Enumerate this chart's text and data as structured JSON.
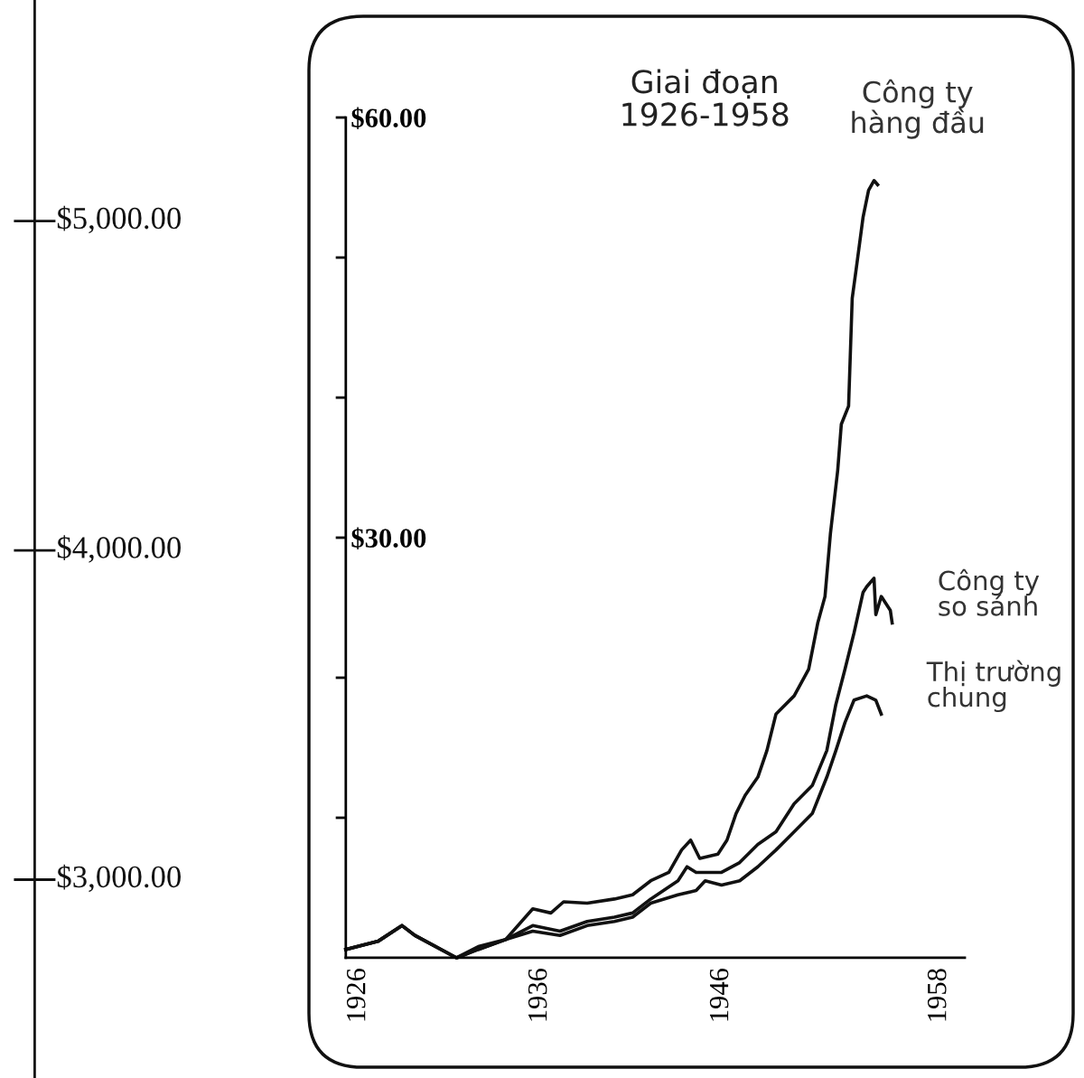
{
  "chart_data": [
    {
      "type": "other",
      "annotations": [
        "$5,000.00",
        "$4,000.00",
        "$3,000.00"
      ]
    },
    {
      "type": "line",
      "title": "Giai đoạn\n1926-1958",
      "xlim": [
        1925.3,
        1959.4
      ],
      "ylim": [
        0,
        60
      ],
      "xticks": [
        1926,
        1936,
        1946,
        1958
      ],
      "yticks": [
        {
          "value": 10,
          "label": null
        },
        {
          "value": 20,
          "label": null
        },
        {
          "value": 30,
          "label": "$30.00"
        },
        {
          "value": 40,
          "label": null
        },
        {
          "value": 50,
          "label": null
        },
        {
          "value": 60,
          "label": "$60.00"
        }
      ],
      "grid": false,
      "legend": false,
      "series": [
        {
          "name": "Công ty\nhàng đầu",
          "color": "#111111",
          "x": [
            1925.3,
            1927.1,
            1928.4,
            1929.1,
            1931.4,
            1932.6,
            1934.1,
            1935.6,
            1936.6,
            1937.3,
            1938.6,
            1940.1,
            1941.1,
            1942.1,
            1943.1,
            1943.8,
            1944.3,
            1944.8,
            1945.8,
            1946.3,
            1946.8,
            1947.3,
            1948.0,
            1948.5,
            1949.0,
            1950.0,
            1950.8,
            1951.3,
            1951.7,
            1952.0,
            1952.4,
            1952.6,
            1953.0,
            1953.2,
            1953.4,
            1953.8,
            1954.1,
            1954.4,
            1954.6
          ],
          "values": [
            0.6,
            1.2,
            2.3,
            1.6,
            0,
            0.8,
            1.3,
            3.5,
            3.2,
            4.0,
            3.9,
            4.2,
            4.5,
            5.5,
            6.1,
            7.7,
            8.4,
            7.1,
            7.4,
            8.4,
            10.3,
            11.6,
            12.9,
            14.8,
            17.4,
            18.7,
            20.6,
            23.9,
            25.8,
            30.3,
            34.8,
            38.1,
            39.4,
            47.1,
            49.0,
            52.9,
            54.8,
            55.5,
            55.2
          ]
        },
        {
          "name": "Công ty\nso sánh",
          "color": "#111111",
          "x": [
            1925.3,
            1927.1,
            1928.4,
            1929.1,
            1931.4,
            1932.6,
            1934.1,
            1935.6,
            1937.1,
            1938.6,
            1940.1,
            1941.1,
            1942.1,
            1943.6,
            1944.1,
            1944.6,
            1946.0,
            1947.0,
            1948.0,
            1949.0,
            1950.0,
            1951.0,
            1951.8,
            1952.3,
            1952.8,
            1953.3,
            1953.8,
            1954.0,
            1954.4,
            1954.5,
            1954.8,
            1955.3,
            1955.4
          ],
          "values": [
            0.6,
            1.2,
            2.3,
            1.6,
            0,
            0.6,
            1.3,
            2.3,
            1.9,
            2.6,
            2.9,
            3.2,
            4.2,
            5.5,
            6.5,
            6.1,
            6.1,
            6.8,
            8.1,
            9.0,
            11.0,
            12.3,
            14.8,
            18.1,
            20.6,
            23.2,
            26.1,
            26.5,
            27.1,
            24.5,
            25.8,
            24.8,
            23.9
          ]
        },
        {
          "name": "Thị trường\nchung",
          "color": "#111111",
          "x": [
            1925.3,
            1927.1,
            1928.4,
            1929.1,
            1931.4,
            1932.6,
            1934.1,
            1935.6,
            1937.1,
            1938.6,
            1940.1,
            1941.1,
            1942.1,
            1943.6,
            1944.6,
            1945.1,
            1946.0,
            1947.0,
            1948.0,
            1949.0,
            1950.0,
            1951.0,
            1951.8,
            1952.3,
            1952.8,
            1953.3,
            1954.0,
            1954.5,
            1954.8
          ],
          "values": [
            0.6,
            1.2,
            2.3,
            1.6,
            0,
            0.6,
            1.3,
            1.9,
            1.6,
            2.3,
            2.6,
            2.9,
            3.9,
            4.5,
            4.8,
            5.5,
            5.2,
            5.5,
            6.5,
            7.7,
            9.0,
            10.3,
            12.9,
            14.8,
            16.8,
            18.4,
            18.7,
            18.4,
            17.4
          ]
        }
      ]
    }
  ]
}
